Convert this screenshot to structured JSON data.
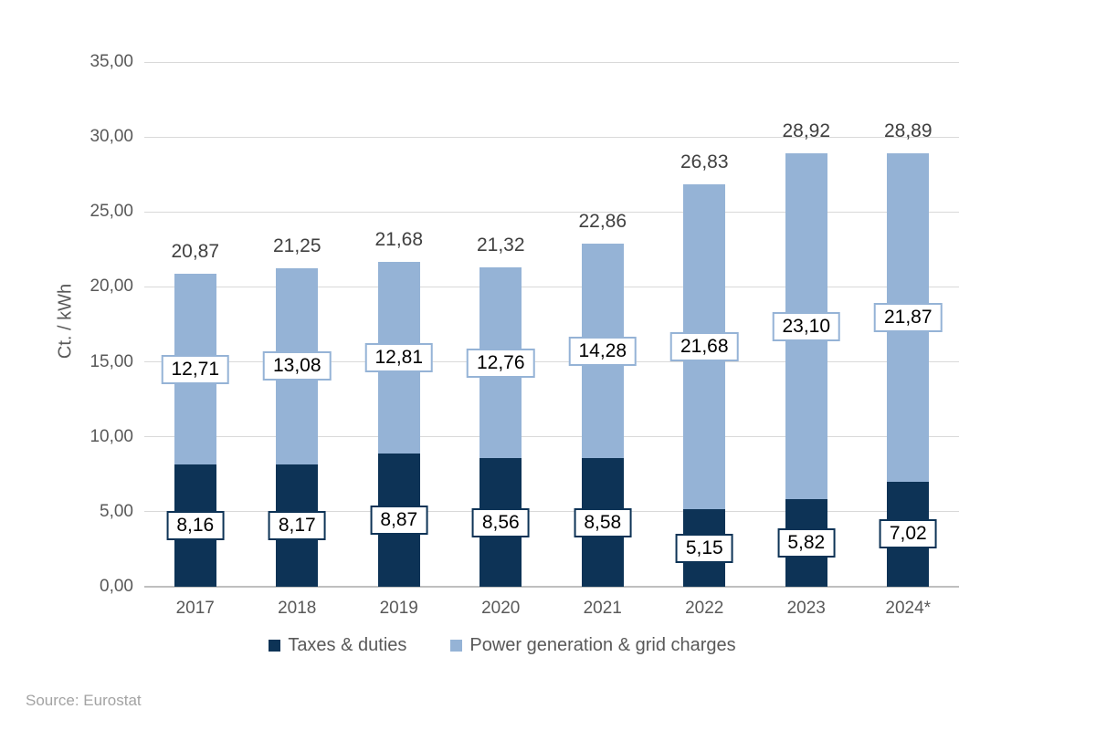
{
  "chart_data": {
    "type": "bar",
    "stacked": true,
    "title": "",
    "ylabel": "Ct. / kWh",
    "ylim": [
      0,
      35
    ],
    "grid": true,
    "legend_position": "bottom",
    "decimal_format": "comma",
    "categories": [
      "2017",
      "2018",
      "2019",
      "2020",
      "2021",
      "2022",
      "2023",
      "2024*"
    ],
    "series": [
      {
        "name": "Taxes & duties",
        "color": "#0d3356",
        "values": [
          8.16,
          8.17,
          8.87,
          8.56,
          8.58,
          5.15,
          5.82,
          7.02
        ],
        "value_labels": [
          "8,16",
          "8,17",
          "8,87",
          "8,56",
          "8,58",
          "5,15",
          "5,82",
          "7,02"
        ]
      },
      {
        "name": "Power generation & grid charges",
        "color": "#95b3d6",
        "values": [
          12.71,
          13.08,
          12.81,
          12.76,
          14.28,
          21.68,
          23.1,
          21.87
        ],
        "value_labels": [
          "12,71",
          "13,08",
          "12,81",
          "12,76",
          "14,28",
          "21,68",
          "23,10",
          "21,87"
        ]
      }
    ],
    "totals": [
      20.87,
      21.25,
      21.68,
      21.32,
      22.86,
      26.83,
      28.92,
      28.89
    ],
    "total_labels": [
      "20,87",
      "21,25",
      "21,68",
      "21,32",
      "22,86",
      "26,83",
      "28,92",
      "28,89"
    ],
    "yticks": [
      {
        "value": 0,
        "label": "0,00"
      },
      {
        "value": 5,
        "label": "5,00"
      },
      {
        "value": 10,
        "label": "10,00"
      },
      {
        "value": 15,
        "label": "15,00"
      },
      {
        "value": 20,
        "label": "20,00"
      },
      {
        "value": 25,
        "label": "25,00"
      },
      {
        "value": 30,
        "label": "30,00"
      },
      {
        "value": 35,
        "label": "35,00"
      }
    ]
  },
  "colors": {
    "gridline": "#d9d9d9",
    "axis_line": "#bfbfbf",
    "tick_text": "#595959",
    "total_text": "#404040",
    "legend_text": "#595959",
    "source_text": "#a3a3a3"
  },
  "footer": {
    "source": "Source: Eurostat"
  }
}
